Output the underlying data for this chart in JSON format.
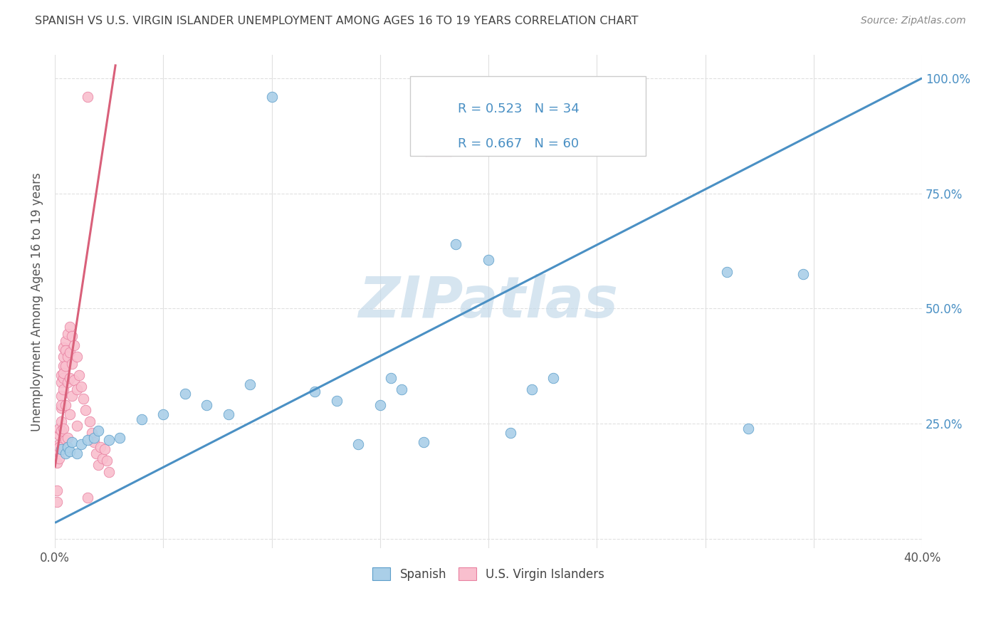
{
  "title": "SPANISH VS U.S. VIRGIN ISLANDER UNEMPLOYMENT AMONG AGES 16 TO 19 YEARS CORRELATION CHART",
  "source": "Source: ZipAtlas.com",
  "ylabel": "Unemployment Among Ages 16 to 19 years",
  "xlim": [
    0.0,
    0.4
  ],
  "ylim": [
    -0.02,
    1.05
  ],
  "watermark": "ZIPatlas",
  "legend_blue_r": "R = 0.523",
  "legend_blue_n": "N = 34",
  "legend_pink_r": "R = 0.667",
  "legend_pink_n": "N = 60",
  "blue_color": "#aacfe8",
  "pink_color": "#f9bfce",
  "blue_edge_color": "#5b9dc9",
  "pink_edge_color": "#e87fa0",
  "blue_line_color": "#4a90c4",
  "pink_line_color": "#d9607a",
  "legend_text_color": "#4a90c4",
  "title_color": "#444444",
  "source_color": "#888888",
  "grid_color": "#e0e0e0",
  "blue_line_x": [
    0.0,
    0.4
  ],
  "blue_line_y": [
    0.035,
    1.0
  ],
  "pink_line_x": [
    0.0,
    0.028
  ],
  "pink_line_y": [
    0.155,
    1.03
  ],
  "blue_x": [
    0.003,
    0.005,
    0.006,
    0.007,
    0.008,
    0.01,
    0.012,
    0.015,
    0.018,
    0.02,
    0.025,
    0.03,
    0.04,
    0.05,
    0.06,
    0.07,
    0.08,
    0.09,
    0.1,
    0.12,
    0.13,
    0.14,
    0.15,
    0.155,
    0.16,
    0.17,
    0.185,
    0.2,
    0.21,
    0.22,
    0.23,
    0.31,
    0.32,
    0.345
  ],
  "blue_y": [
    0.195,
    0.185,
    0.2,
    0.19,
    0.21,
    0.185,
    0.205,
    0.215,
    0.22,
    0.235,
    0.215,
    0.22,
    0.26,
    0.27,
    0.315,
    0.29,
    0.27,
    0.335,
    0.96,
    0.32,
    0.3,
    0.205,
    0.29,
    0.35,
    0.325,
    0.21,
    0.64,
    0.605,
    0.23,
    0.325,
    0.35,
    0.58,
    0.24,
    0.575
  ],
  "pink_x": [
    0.001,
    0.001,
    0.001,
    0.002,
    0.002,
    0.002,
    0.002,
    0.002,
    0.003,
    0.003,
    0.003,
    0.003,
    0.003,
    0.003,
    0.003,
    0.004,
    0.004,
    0.004,
    0.004,
    0.004,
    0.004,
    0.004,
    0.005,
    0.005,
    0.005,
    0.005,
    0.005,
    0.006,
    0.006,
    0.006,
    0.006,
    0.007,
    0.007,
    0.007,
    0.007,
    0.008,
    0.008,
    0.008,
    0.009,
    0.009,
    0.01,
    0.01,
    0.01,
    0.011,
    0.012,
    0.013,
    0.014,
    0.015,
    0.016,
    0.017,
    0.018,
    0.019,
    0.02,
    0.021,
    0.022,
    0.023,
    0.024,
    0.025,
    0.002,
    0.015
  ],
  "pink_y": [
    0.165,
    0.105,
    0.08,
    0.19,
    0.205,
    0.225,
    0.24,
    0.175,
    0.255,
    0.285,
    0.31,
    0.34,
    0.355,
    0.29,
    0.235,
    0.375,
    0.35,
    0.325,
    0.395,
    0.415,
    0.36,
    0.24,
    0.43,
    0.41,
    0.375,
    0.29,
    0.215,
    0.445,
    0.395,
    0.34,
    0.22,
    0.46,
    0.405,
    0.35,
    0.27,
    0.44,
    0.38,
    0.31,
    0.42,
    0.345,
    0.395,
    0.325,
    0.245,
    0.355,
    0.33,
    0.305,
    0.28,
    0.96,
    0.255,
    0.23,
    0.21,
    0.185,
    0.16,
    0.2,
    0.175,
    0.195,
    0.17,
    0.145,
    0.2,
    0.09
  ],
  "figsize": [
    14.06,
    8.92
  ],
  "dpi": 100
}
